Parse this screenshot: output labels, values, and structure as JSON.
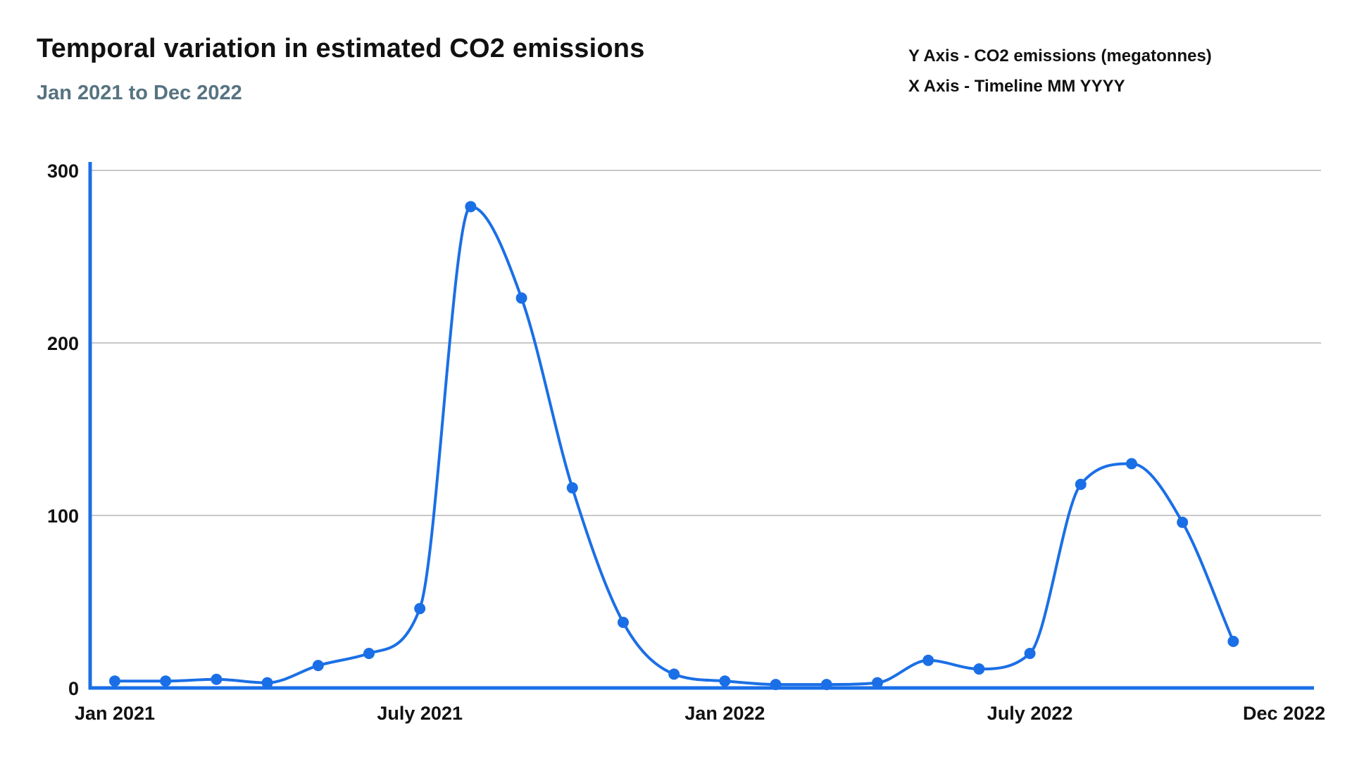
{
  "header": {
    "title": "Temporal variation in estimated CO2 emissions",
    "subtitle": "Jan 2021 to Dec 2022",
    "axis_note_y": "Y Axis - CO2 emissions (megatonnes)",
    "axis_note_x": "X Axis - Timeline MM YYYY"
  },
  "colors": {
    "line": "#1b6fe6",
    "point": "#1b6fe6",
    "axis": "#1b6fe6",
    "gridline": "#c8c8c8",
    "title_text": "#111111",
    "subtitle_text": "#567380",
    "tick_text": "#111111"
  },
  "chart_data": {
    "type": "line",
    "title": "Temporal variation in estimated CO2 emissions",
    "subtitle": "Jan 2021 to Dec 2022",
    "xlabel": "Timeline MM YYYY",
    "ylabel": "CO2 emissions (megatonnes)",
    "ylim": [
      0,
      300
    ],
    "y_ticks": [
      0,
      100,
      200,
      300
    ],
    "grid": "horizontal",
    "legend": "none",
    "marker": "circle",
    "x_axis_months_total": 24,
    "x": [
      "Jan 2021",
      "Feb 2021",
      "Mar 2021",
      "Apr 2021",
      "May 2021",
      "Jun 2021",
      "Jul 2021",
      "Aug 2021",
      "Sep 2021",
      "Oct 2021",
      "Nov 2021",
      "Dec 2021",
      "Jan 2022",
      "Feb 2022",
      "Mar 2022",
      "Apr 2022",
      "May 2022",
      "Jun 2022",
      "Jul 2022",
      "Aug 2022",
      "Sep 2022",
      "Oct 2022",
      "Nov 2022"
    ],
    "values": [
      4,
      4,
      5,
      3,
      13,
      20,
      46,
      279,
      226,
      116,
      38,
      8,
      4,
      2,
      2,
      3,
      16,
      11,
      20,
      118,
      130,
      96,
      27
    ],
    "x_tick_labels": [
      {
        "label": "Jan 2021",
        "month_index": 0
      },
      {
        "label": "July 2021",
        "month_index": 6
      },
      {
        "label": "Jan 2022",
        "month_index": 12
      },
      {
        "label": "July 2022",
        "month_index": 18
      },
      {
        "label": "Dec 2022",
        "month_index": 23
      }
    ]
  }
}
